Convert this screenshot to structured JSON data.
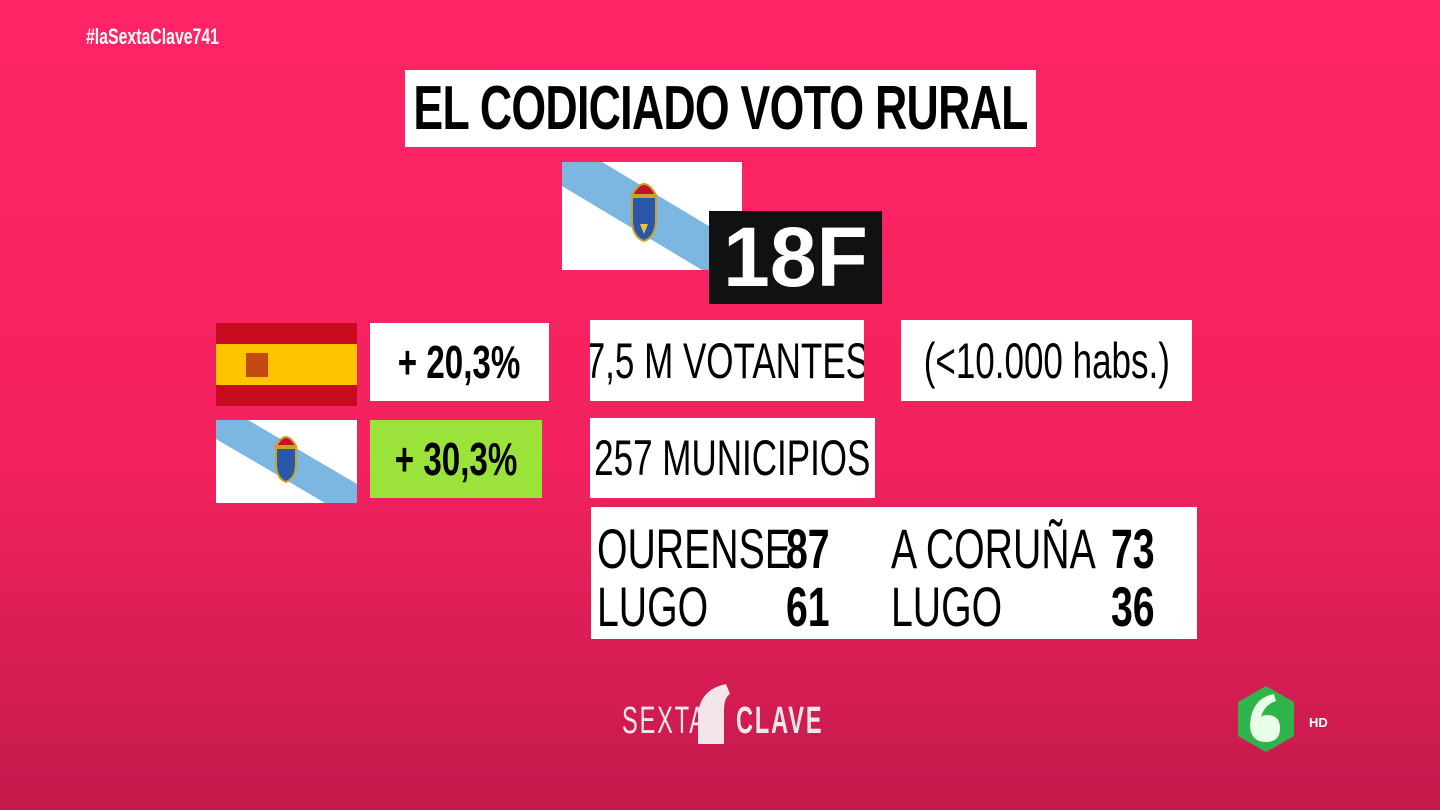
{
  "hashtag": "#laSextaClave741",
  "title": "EL CODICIADO VOTO RURAL",
  "date_badge": "18F",
  "spain_change": "+ 20,3%",
  "galicia_change": "+ 30,3%",
  "voters": "7,5 M VOTANTES",
  "threshold": "(<10.000 habs.)",
  "municipalities": "257 MUNICIPIOS",
  "table": {
    "rows": [
      [
        "OURENSE",
        "87",
        "A CORUÑA",
        "73"
      ],
      [
        "LUGO",
        "61",
        "LUGO",
        "36"
      ]
    ]
  },
  "logo": {
    "left": "SEXTA",
    "right": "CLAVE"
  },
  "channel_badge": "HD"
}
